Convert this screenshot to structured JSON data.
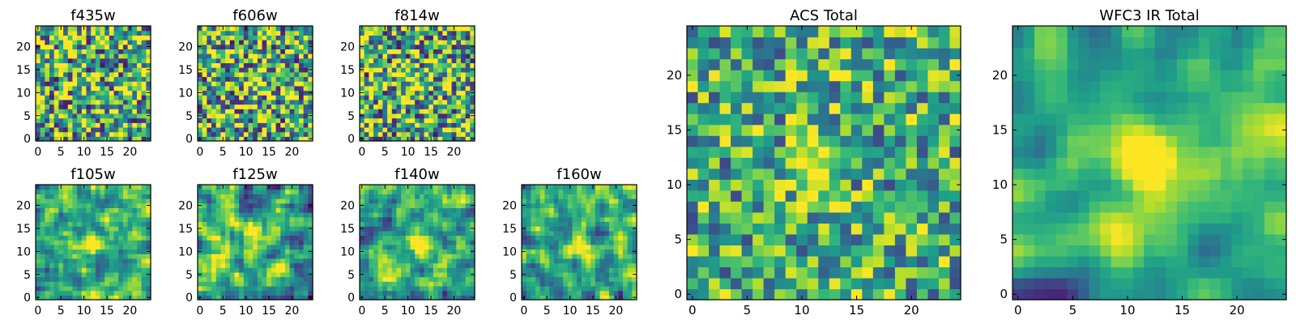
{
  "chart_data": [
    {
      "type": "heatmap",
      "title": "f435w",
      "grid_size": 25,
      "xticks": [
        0,
        5,
        10,
        15,
        20
      ],
      "yticks": [
        0,
        5,
        10,
        15,
        20
      ],
      "xlim": [
        -0.5,
        24.5
      ],
      "ylim": [
        -0.5,
        24.5
      ],
      "center": [
        12,
        12
      ],
      "signal": 0.05,
      "noise": 0.55,
      "smooth": 0,
      "seed": 11
    },
    {
      "type": "heatmap",
      "title": "f606w",
      "grid_size": 25,
      "xticks": [
        0,
        5,
        10,
        15,
        20
      ],
      "yticks": [
        0,
        5,
        10,
        15,
        20
      ],
      "xlim": [
        -0.5,
        24.5
      ],
      "ylim": [
        -0.5,
        24.5
      ],
      "center": [
        12,
        12
      ],
      "signal": 0.35,
      "noise": 0.55,
      "smooth": 0,
      "seed": 23
    },
    {
      "type": "heatmap",
      "title": "f814w",
      "grid_size": 25,
      "xticks": [
        0,
        5,
        10,
        15,
        20
      ],
      "yticks": [
        0,
        5,
        10,
        15,
        20
      ],
      "xlim": [
        -0.5,
        24.5
      ],
      "ylim": [
        -0.5,
        24.5
      ],
      "center": [
        12,
        12
      ],
      "signal": 0.3,
      "noise": 0.55,
      "smooth": 0,
      "seed": 37
    },
    {
      "type": "heatmap",
      "title": "f105w",
      "grid_size": 25,
      "xticks": [
        0,
        5,
        10,
        15,
        20
      ],
      "yticks": [
        0,
        5,
        10,
        15,
        20
      ],
      "xlim": [
        -0.5,
        24.5
      ],
      "ylim": [
        -0.5,
        24.5
      ],
      "center": [
        12,
        12
      ],
      "signal": 0.45,
      "noise": 0.45,
      "smooth": 1,
      "seed": 41
    },
    {
      "type": "heatmap",
      "title": "f125w",
      "grid_size": 25,
      "xticks": [
        0,
        5,
        10,
        15,
        20
      ],
      "yticks": [
        0,
        5,
        10,
        15,
        20
      ],
      "xlim": [
        -0.5,
        24.5
      ],
      "ylim": [
        -0.5,
        24.5
      ],
      "center": [
        12,
        12
      ],
      "signal": 0.3,
      "noise": 0.5,
      "smooth": 1,
      "seed": 53
    },
    {
      "type": "heatmap",
      "title": "f140w",
      "grid_size": 25,
      "xticks": [
        0,
        5,
        10,
        15,
        20
      ],
      "yticks": [
        0,
        5,
        10,
        15,
        20
      ],
      "xlim": [
        -0.5,
        24.5
      ],
      "ylim": [
        -0.5,
        24.5
      ],
      "center": [
        12,
        12
      ],
      "signal": 0.45,
      "noise": 0.45,
      "smooth": 1,
      "seed": 67
    },
    {
      "type": "heatmap",
      "title": "f160w",
      "grid_size": 25,
      "xticks": [
        0,
        5,
        10,
        15,
        20
      ],
      "yticks": [
        0,
        5,
        10,
        15,
        20
      ],
      "xlim": [
        -0.5,
        24.5
      ],
      "ylim": [
        -0.5,
        24.5
      ],
      "center": [
        12,
        11
      ],
      "signal": 0.5,
      "noise": 0.45,
      "smooth": 1,
      "seed": 79
    },
    {
      "type": "heatmap",
      "title": "ACS Total",
      "grid_size": 25,
      "xticks": [
        0,
        5,
        10,
        15,
        20
      ],
      "yticks": [
        0,
        5,
        10,
        15,
        20
      ],
      "xlim": [
        -0.5,
        24.5
      ],
      "ylim": [
        -0.5,
        24.5
      ],
      "center": [
        11,
        11
      ],
      "signal": 0.45,
      "noise": 0.4,
      "smooth": 0,
      "seed": 89
    },
    {
      "type": "heatmap",
      "title": "WFC3 IR Total",
      "grid_size": 25,
      "xticks": [
        0,
        5,
        10,
        15,
        20
      ],
      "yticks": [
        0,
        5,
        10,
        15,
        20
      ],
      "xlim": [
        -0.5,
        24.5
      ],
      "ylim": [
        -0.5,
        24.5
      ],
      "center": [
        12,
        12
      ],
      "signal": 0.75,
      "noise": 0.3,
      "smooth": 2,
      "seed": 97
    }
  ],
  "colormap": {
    "name": "viridis",
    "stops": [
      "#440154",
      "#482878",
      "#3e4989",
      "#31688e",
      "#26828e",
      "#1f9e89",
      "#35b779",
      "#6ece58",
      "#b5de2b",
      "#fde725"
    ]
  }
}
